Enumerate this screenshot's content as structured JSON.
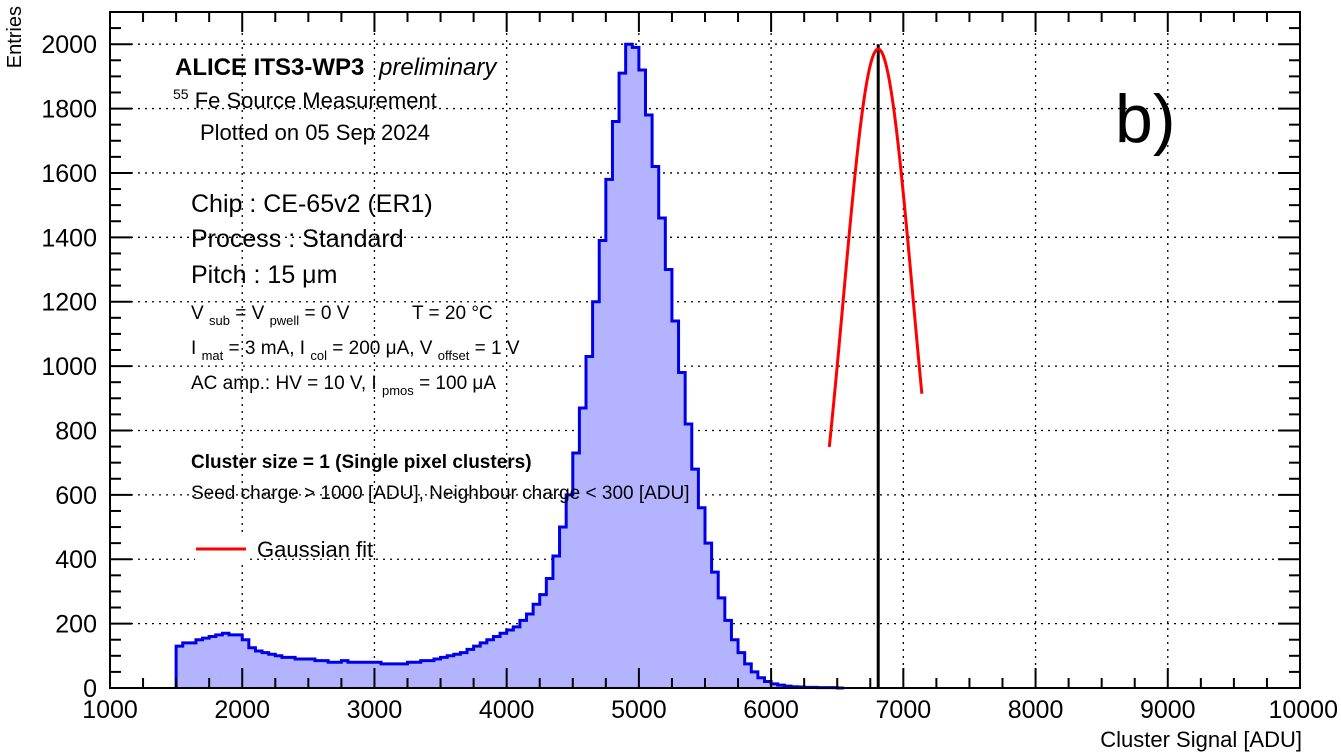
{
  "chart_data": {
    "type": "histogram",
    "ylabel": "Entries",
    "xlabel": "Cluster Signal [ADU]",
    "xlim": [
      1000,
      10000
    ],
    "ylim": [
      0,
      2100
    ],
    "x_ticks": [
      1000,
      2000,
      3000,
      4000,
      5000,
      6000,
      7000,
      8000,
      9000,
      10000
    ],
    "y_ticks": [
      0,
      200,
      400,
      600,
      800,
      1000,
      1200,
      1400,
      1600,
      1800,
      2000
    ],
    "x_tick_labels": [
      "1000",
      "2000",
      "3000",
      "4000",
      "5000",
      "6000",
      "7000",
      "8000",
      "9000",
      "10000"
    ],
    "y_tick_labels": [
      "0",
      "200",
      "400",
      "600",
      "800",
      "1000",
      "1200",
      "1400",
      "1600",
      "1800",
      "2000"
    ],
    "grid": true,
    "panel_label": "b)",
    "histogram": {
      "bin_width": 50,
      "x_start": 1500,
      "values": [
        130,
        140,
        140,
        150,
        155,
        160,
        165,
        170,
        165,
        165,
        150,
        125,
        115,
        110,
        105,
        100,
        95,
        95,
        90,
        90,
        90,
        85,
        85,
        80,
        80,
        85,
        80,
        80,
        80,
        80,
        80,
        75,
        75,
        75,
        75,
        80,
        80,
        85,
        85,
        90,
        95,
        100,
        105,
        110,
        120,
        130,
        140,
        150,
        160,
        170,
        180,
        190,
        210,
        230,
        260,
        290,
        340,
        410,
        500,
        600,
        730,
        870,
        1030,
        1200,
        1390,
        1580,
        1760,
        1910,
        2000,
        1990,
        1920,
        1780,
        1620,
        1460,
        1300,
        1140,
        980,
        820,
        680,
        560,
        450,
        360,
        280,
        210,
        150,
        110,
        75,
        50,
        32,
        20,
        13,
        9,
        6,
        4,
        3,
        2,
        2,
        1,
        1,
        1,
        0
      ],
      "fill_color": "#b3b3ff",
      "line_color": "#0000e6"
    },
    "fit": {
      "name": "Gaussian fit",
      "type": "gaussian",
      "mean": 6810,
      "sigma": 265,
      "amplitude": 1985,
      "range": [
        6440,
        7140
      ],
      "color": "#ff0000"
    },
    "peak_marker_x": 6810,
    "annotations": {
      "title_bold": "ALICE ITS3-WP3",
      "title_italic": "preliminary",
      "source_sup": "55",
      "source": "Fe Source Measurement",
      "date": "Plotted on 05 Sep 2024",
      "chip": "Chip : CE-65v2 (ER1)",
      "process": "Process : Standard",
      "pitch": "Pitch : 15 μm",
      "vsub_V": "V",
      "vsub_sub": "sub",
      "vsub_eq": " = V",
      "vsub_pwell": "pwell",
      "vsub_val": " = 0 V",
      "temp": "T = 20 °C",
      "imat_I": "I",
      "imat_sub": "mat",
      "imat_val": " = 3 mA, I",
      "icol_sub": "col",
      "icol_val": " = 200 μA, V",
      "voff_sub": "offset",
      "voff_val": " = 1 V",
      "ac_text": "AC amp.: HV = 10 V, I",
      "ac_sub": "pmos",
      "ac_val": " = 100 μA",
      "cluster": "Cluster size = 1 (Single pixel clusters)",
      "seed": "Seed charge > 1000 [ADU], Neighbour charge < 300 [ADU]"
    },
    "legend": {
      "label": "Gaussian fit"
    }
  }
}
